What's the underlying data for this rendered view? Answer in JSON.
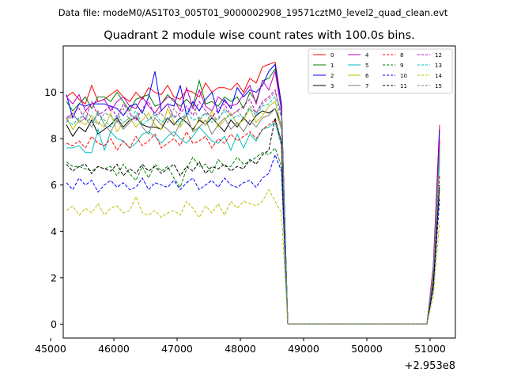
{
  "header": {
    "file_label": "Data file: modeM0/AS1T03_005T01_9000002908_19571cztM0_level2_quad_clean.evt"
  },
  "chart_data": {
    "type": "line",
    "title": "Quadrant 2 module wise count rates with 100.0s bins.",
    "xlabel": "",
    "ylabel": "",
    "x_offset_label": "+2.953e8",
    "xlim": [
      45200,
      51400
    ],
    "ylim": [
      -0.6,
      12
    ],
    "xticks": [
      45000,
      46000,
      47000,
      48000,
      49000,
      50000,
      51000
    ],
    "yticks": [
      0,
      2,
      4,
      6,
      8,
      10
    ],
    "grid": false,
    "legend": {
      "placement": "top-right",
      "columns": 4
    },
    "x": [
      45250,
      45350,
      45450,
      45550,
      45650,
      45750,
      45850,
      45950,
      46050,
      46150,
      46250,
      46350,
      46450,
      46550,
      46650,
      46750,
      46850,
      46950,
      47050,
      47150,
      47250,
      47350,
      47450,
      47550,
      47650,
      47750,
      47850,
      47950,
      48050,
      48150,
      48250,
      48350,
      48450,
      48550,
      48650,
      48750,
      50950,
      51050,
      51150
    ],
    "series": [
      {
        "name": "0",
        "color": "#ff0000",
        "dash": "solid",
        "values": [
          9.8,
          10.0,
          9.7,
          9.5,
          10.3,
          9.6,
          9.7,
          9.9,
          10.1,
          9.8,
          9.6,
          10.0,
          9.7,
          10.2,
          10.0,
          9.9,
          10.3,
          9.8,
          9.7,
          10.1,
          10.0,
          9.8,
          10.4,
          10.0,
          10.2,
          10.2,
          10.1,
          10.4,
          10.0,
          10.6,
          10.4,
          11.1,
          11.2,
          11.3,
          9.5,
          0.0,
          0.0,
          2.5,
          8.6
        ]
      },
      {
        "name": "1",
        "color": "#008000",
        "dash": "solid",
        "values": [
          9.6,
          9.2,
          9.5,
          9.8,
          9.3,
          9.8,
          9.8,
          9.6,
          10.0,
          9.6,
          9.2,
          9.7,
          9.8,
          9.9,
          9.4,
          9.5,
          9.9,
          9.6,
          9.4,
          9.7,
          9.4,
          10.5,
          9.5,
          9.6,
          9.4,
          9.8,
          9.6,
          9.8,
          9.3,
          10.0,
          9.6,
          10.5,
          10.6,
          11.0,
          9.5,
          0.0,
          0.0,
          2.2,
          7.2
        ]
      },
      {
        "name": "2",
        "color": "#0000ff",
        "dash": "solid",
        "values": [
          9.9,
          8.9,
          9.5,
          9.4,
          9.5,
          9.5,
          9.5,
          9.4,
          9.3,
          9.0,
          9.4,
          9.5,
          9.1,
          9.8,
          10.9,
          9.2,
          9.5,
          9.4,
          10.3,
          9.0,
          9.6,
          9.2,
          9.7,
          10.0,
          9.1,
          9.7,
          9.3,
          10.2,
          9.8,
          10.1,
          10.0,
          10.3,
          10.9,
          11.2,
          9.4,
          0.0,
          0.0,
          2.3,
          8.4
        ]
      },
      {
        "name": "3",
        "color": "#000000",
        "dash": "solid",
        "values": [
          8.6,
          8.1,
          8.5,
          8.3,
          8.8,
          8.2,
          8.4,
          8.6,
          8.9,
          8.5,
          8.8,
          8.9,
          8.6,
          8.5,
          8.5,
          8.4,
          8.9,
          8.6,
          8.9,
          8.7,
          8.4,
          8.8,
          8.6,
          8.9,
          8.6,
          8.3,
          8.8,
          8.5,
          8.9,
          8.6,
          9.0,
          9.2,
          9.1,
          9.3,
          8.6,
          0.0,
          0.0,
          2.1,
          7.9
        ]
      },
      {
        "name": "4",
        "color": "#bf00bf",
        "dash": "solid",
        "values": [
          9.8,
          9.5,
          9.9,
          9.2,
          9.5,
          9.6,
          9.7,
          9.2,
          9.6,
          9.8,
          9.4,
          9.3,
          9.8,
          9.4,
          9.1,
          9.5,
          9.8,
          9.7,
          9.2,
          10.2,
          9.3,
          10.1,
          9.4,
          9.2,
          9.8,
          9.6,
          9.4,
          9.5,
          9.9,
          10.3,
          9.5,
          10.5,
          10.1,
          10.9,
          9.2,
          0.0,
          0.0,
          2.4,
          8.0
        ]
      },
      {
        "name": "5",
        "color": "#00bfbf",
        "dash": "solid",
        "values": [
          7.6,
          7.6,
          7.7,
          7.4,
          7.4,
          8.4,
          7.5,
          8.3,
          8.0,
          7.9,
          7.6,
          7.8,
          8.2,
          8.3,
          8.1,
          7.8,
          8.1,
          8.3,
          8.0,
          7.8,
          8.1,
          8.5,
          8.2,
          7.9,
          7.8,
          8.1,
          7.5,
          8.2,
          7.6,
          8.2,
          7.9,
          8.4,
          8.5,
          8.7,
          7.7,
          0.0,
          0.0,
          1.9,
          7.0
        ]
      },
      {
        "name": "6",
        "color": "#bfbf00",
        "dash": "solid",
        "values": [
          8.9,
          8.4,
          8.8,
          8.6,
          9.0,
          8.7,
          8.5,
          9.1,
          8.3,
          8.7,
          8.9,
          8.5,
          8.8,
          9.1,
          8.6,
          8.4,
          9.3,
          8.7,
          8.5,
          9.0,
          8.3,
          8.9,
          8.6,
          9.2,
          8.5,
          8.8,
          9.1,
          8.6,
          8.8,
          9.3,
          8.7,
          9.0,
          9.4,
          9.6,
          8.5,
          0.0,
          0.0,
          2.0,
          7.4
        ]
      },
      {
        "name": "7",
        "color": "#808080",
        "dash": "solid",
        "values": [
          8.8,
          9.1,
          8.7,
          8.9,
          8.5,
          9.2,
          8.6,
          8.3,
          8.8,
          8.4,
          8.7,
          9.0,
          8.5,
          8.2,
          8.9,
          8.6,
          8.4,
          8.1,
          8.7,
          9.0,
          8.3,
          8.5,
          8.8,
          8.2,
          8.6,
          8.9,
          8.4,
          8.7,
          8.3,
          8.8,
          8.5,
          8.9,
          9.0,
          9.3,
          8.4,
          0.0,
          0.0,
          2.0,
          7.5
        ]
      },
      {
        "name": "8",
        "color": "#ff0000",
        "dash": "dashed",
        "values": [
          7.8,
          7.7,
          7.9,
          7.6,
          8.1,
          7.8,
          7.7,
          8.0,
          7.5,
          7.9,
          7.6,
          8.1,
          7.7,
          7.9,
          8.2,
          7.6,
          7.8,
          8.0,
          7.7,
          8.3,
          7.8,
          7.9,
          8.1,
          7.6,
          8.0,
          7.8,
          8.2,
          7.9,
          8.1,
          8.3,
          8.0,
          8.4,
          8.6,
          8.8,
          7.9,
          0.0,
          0.0,
          1.8,
          6.4
        ]
      },
      {
        "name": "9",
        "color": "#008000",
        "dash": "dashed",
        "values": [
          7.0,
          6.8,
          6.8,
          6.7,
          6.6,
          6.8,
          6.7,
          6.8,
          6.4,
          6.9,
          6.5,
          6.2,
          6.8,
          6.3,
          6.9,
          6.6,
          6.8,
          6.3,
          5.9,
          6.7,
          7.2,
          6.8,
          6.9,
          6.5,
          7.1,
          6.8,
          6.8,
          7.2,
          6.9,
          7.0,
          7.2,
          7.4,
          7.3,
          7.6,
          6.8,
          0.0,
          0.0,
          1.6,
          5.9
        ]
      },
      {
        "name": "10",
        "color": "#0000ff",
        "dash": "dashed",
        "values": [
          6.1,
          5.8,
          6.3,
          6.0,
          6.2,
          5.7,
          6.0,
          6.2,
          5.9,
          6.1,
          5.8,
          5.9,
          6.3,
          5.8,
          6.1,
          6.0,
          5.9,
          6.2,
          5.8,
          6.1,
          6.3,
          5.8,
          6.0,
          6.2,
          5.9,
          6.3,
          6.0,
          5.9,
          6.1,
          6.2,
          5.9,
          6.3,
          6.5,
          7.3,
          6.6,
          0.0,
          0.0,
          1.5,
          5.4
        ]
      },
      {
        "name": "11",
        "color": "#000000",
        "dash": "dashed",
        "values": [
          6.9,
          6.6,
          6.8,
          6.9,
          6.5,
          6.8,
          6.7,
          6.6,
          6.9,
          6.4,
          6.7,
          6.5,
          6.9,
          6.6,
          6.8,
          6.5,
          6.7,
          6.9,
          6.4,
          6.8,
          6.6,
          7.0,
          6.5,
          6.8,
          6.7,
          6.9,
          6.6,
          6.8,
          6.7,
          7.1,
          6.9,
          7.3,
          7.5,
          8.9,
          7.8,
          0.0,
          0.0,
          1.7,
          6.0
        ]
      },
      {
        "name": "12",
        "color": "#bf00bf",
        "dash": "dashed",
        "values": [
          8.9,
          9.1,
          9.3,
          8.8,
          9.6,
          9.0,
          9.2,
          9.4,
          8.9,
          9.5,
          9.1,
          8.8,
          9.3,
          9.6,
          9.0,
          9.2,
          9.5,
          8.9,
          9.1,
          9.4,
          9.0,
          9.6,
          9.2,
          8.9,
          9.3,
          9.5,
          9.0,
          9.2,
          9.4,
          9.7,
          9.1,
          9.6,
          9.8,
          10.1,
          9.0,
          0.0,
          0.0,
          2.3,
          7.8
        ]
      },
      {
        "name": "13",
        "color": "#00bfbf",
        "dash": "dashed",
        "values": [
          8.8,
          8.6,
          8.9,
          9.0,
          8.7,
          9.1,
          8.8,
          8.5,
          9.0,
          8.7,
          8.9,
          9.2,
          8.6,
          8.8,
          9.1,
          8.7,
          8.9,
          9.0,
          8.6,
          9.2,
          8.8,
          8.9,
          9.1,
          8.7,
          8.9,
          9.2,
          8.8,
          9.0,
          8.9,
          9.3,
          9.0,
          9.4,
          9.5,
          9.8,
          8.9,
          0.0,
          0.0,
          2.2,
          7.3
        ]
      },
      {
        "name": "14",
        "color": "#bfbf00",
        "dash": "dashed",
        "values": [
          4.9,
          5.1,
          4.7,
          5.0,
          4.8,
          5.2,
          4.7,
          5.0,
          5.1,
          4.8,
          4.9,
          5.5,
          4.8,
          4.7,
          4.9,
          4.6,
          4.8,
          4.9,
          4.7,
          5.3,
          5.0,
          4.6,
          5.1,
          4.8,
          5.2,
          4.7,
          5.3,
          5.0,
          5.3,
          5.2,
          5.1,
          5.3,
          5.8,
          5.3,
          4.8,
          0.0,
          0.0,
          1.2,
          4.4
        ]
      },
      {
        "name": "15",
        "color": "#808080",
        "dash": "dashed",
        "values": [
          8.7,
          9.0,
          8.8,
          9.2,
          8.9,
          8.6,
          9.1,
          9.0,
          8.7,
          9.3,
          8.8,
          9.0,
          9.2,
          8.8,
          9.0,
          9.1,
          8.7,
          9.3,
          8.9,
          9.0,
          9.4,
          8.8,
          9.1,
          9.0,
          8.8,
          9.3,
          9.0,
          9.2,
          8.9,
          9.4,
          9.1,
          9.5,
          9.7,
          10.0,
          9.1,
          0.0,
          0.0,
          2.3,
          7.6
        ]
      }
    ]
  }
}
